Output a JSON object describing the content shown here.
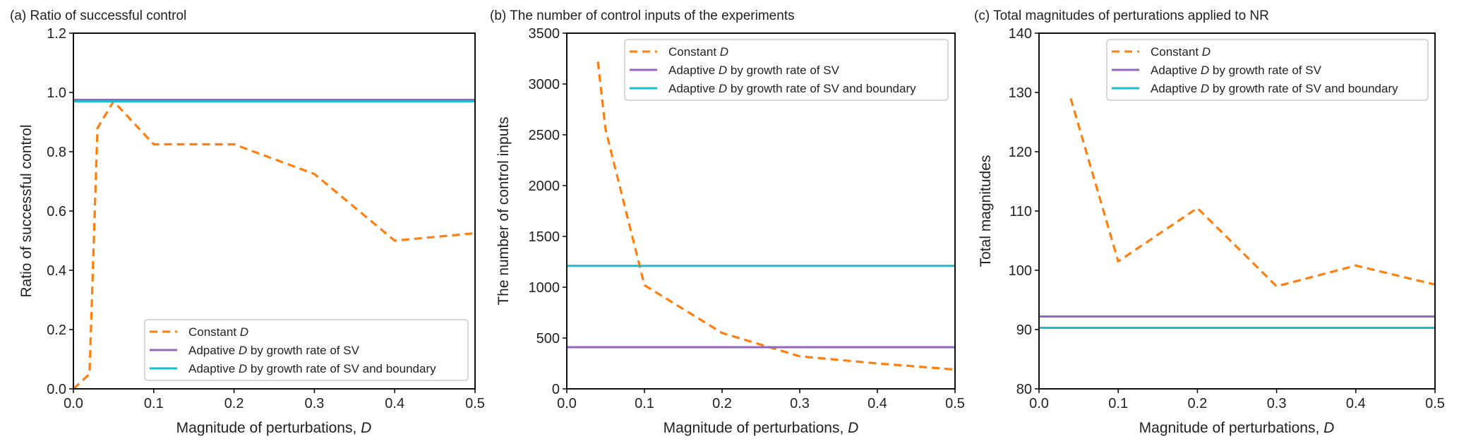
{
  "colors": {
    "constant": "#ff7f0e",
    "adaptive_sv": "#9467bd",
    "adaptive_sv_boundary": "#17becf"
  },
  "chart_data": [
    {
      "id": "a",
      "type": "line",
      "title": "(a) Ratio of successful control",
      "xlabel": "Magnitude of perturbations, ",
      "xlabel_italic": "D",
      "ylabel": "Ratio of successful control",
      "xlim": [
        0,
        0.5
      ],
      "ylim": [
        0,
        1.2
      ],
      "xticks": [
        0.0,
        0.1,
        0.2,
        0.3,
        0.4,
        0.5
      ],
      "xtick_labels": [
        "0.0",
        "0.1",
        "0.2",
        "0.3",
        "0.4",
        "0.5"
      ],
      "yticks": [
        0,
        0.2,
        0.4,
        0.6,
        0.8,
        1.0,
        1.2
      ],
      "ytick_labels": [
        "0.0",
        "0.2",
        "0.4",
        "0.6",
        "0.8",
        "1.0",
        "1.2"
      ],
      "grid": false,
      "legend_position": "lower-right",
      "series": [
        {
          "name": "Constant ",
          "name_italic": "D",
          "name_suffix": "",
          "style": "dashed",
          "color_key": "constant",
          "x": [
            0.0,
            0.02,
            0.03,
            0.05,
            0.1,
            0.2,
            0.3,
            0.4,
            0.5
          ],
          "y": [
            0.0,
            0.05,
            0.88,
            0.97,
            0.825,
            0.825,
            0.725,
            0.5,
            0.525
          ]
        },
        {
          "name": "Adpative ",
          "name_italic": "D",
          "name_suffix": " by growth rate of SV",
          "style": "solid",
          "color_key": "adaptive_sv",
          "x": [
            0.0,
            0.5
          ],
          "y": [
            0.975,
            0.975
          ]
        },
        {
          "name": "Adaptive ",
          "name_italic": "D",
          "name_suffix": " by growth rate of SV and boundary",
          "style": "solid",
          "color_key": "adaptive_sv_boundary",
          "x": [
            0.0,
            0.5
          ],
          "y": [
            0.97,
            0.97
          ]
        }
      ]
    },
    {
      "id": "b",
      "type": "line",
      "title": "(b) The number of control inputs of the experiments",
      "xlabel": "Magnitude of perturbations, ",
      "xlabel_italic": "D",
      "ylabel": "The number of control inputs",
      "xlim": [
        0,
        0.5
      ],
      "ylim": [
        0,
        3500
      ],
      "xticks": [
        0.0,
        0.1,
        0.2,
        0.3,
        0.4,
        0.5
      ],
      "xtick_labels": [
        "0.0",
        "0.1",
        "0.2",
        "0.3",
        "0.4",
        "0.5"
      ],
      "yticks": [
        0,
        500,
        1000,
        1500,
        2000,
        2500,
        3000,
        3500
      ],
      "ytick_labels": [
        "0",
        "500",
        "1000",
        "1500",
        "2000",
        "2500",
        "3000",
        "3500"
      ],
      "grid": false,
      "legend_position": "upper-right",
      "series": [
        {
          "name": "Constant ",
          "name_italic": "D",
          "name_suffix": "",
          "style": "dashed",
          "color_key": "constant",
          "x": [
            0.04,
            0.05,
            0.1,
            0.2,
            0.3,
            0.4,
            0.5
          ],
          "y": [
            3220,
            2550,
            1020,
            550,
            320,
            250,
            190
          ]
        },
        {
          "name": "Adaptive ",
          "name_italic": "D",
          "name_suffix": " by growth rate of SV",
          "style": "solid",
          "color_key": "adaptive_sv",
          "x": [
            0.0,
            0.5
          ],
          "y": [
            410,
            410
          ]
        },
        {
          "name": "Adaptive ",
          "name_italic": "D",
          "name_suffix": " by growth rate of SV and boundary",
          "style": "solid",
          "color_key": "adaptive_sv_boundary",
          "x": [
            0.0,
            0.5
          ],
          "y": [
            1210,
            1210
          ]
        }
      ]
    },
    {
      "id": "c",
      "type": "line",
      "title": "(c) Total magnitudes of perturations applied to NR",
      "xlabel": "Magnitude of perturbations, ",
      "xlabel_italic": "D",
      "ylabel": "Total magnitudes",
      "xlim": [
        0,
        0.5
      ],
      "ylim": [
        80,
        140
      ],
      "xticks": [
        0.0,
        0.1,
        0.2,
        0.3,
        0.4,
        0.5
      ],
      "xtick_labels": [
        "0.0",
        "0.1",
        "0.2",
        "0.3",
        "0.4",
        "0.5"
      ],
      "yticks": [
        80,
        90,
        100,
        110,
        120,
        130,
        140
      ],
      "ytick_labels": [
        "80",
        "90",
        "100",
        "110",
        "120",
        "130",
        "140"
      ],
      "grid": false,
      "legend_position": "upper-right",
      "series": [
        {
          "name": "Constant ",
          "name_italic": "D",
          "name_suffix": "",
          "style": "dashed",
          "color_key": "constant",
          "x": [
            0.04,
            0.1,
            0.2,
            0.3,
            0.4,
            0.5
          ],
          "y": [
            129.0,
            101.5,
            110.5,
            97.3,
            100.8,
            97.6
          ]
        },
        {
          "name": "Adaptive ",
          "name_italic": "D",
          "name_suffix": " by growth rate of SV",
          "style": "solid",
          "color_key": "adaptive_sv",
          "x": [
            0.0,
            0.5
          ],
          "y": [
            92.2,
            92.2
          ]
        },
        {
          "name": "Adaptive ",
          "name_italic": "D",
          "name_suffix": " by growth rate of SV and boundary",
          "style": "solid",
          "color_key": "adaptive_sv_boundary",
          "x": [
            0.0,
            0.5
          ],
          "y": [
            90.3,
            90.3
          ]
        }
      ]
    }
  ]
}
